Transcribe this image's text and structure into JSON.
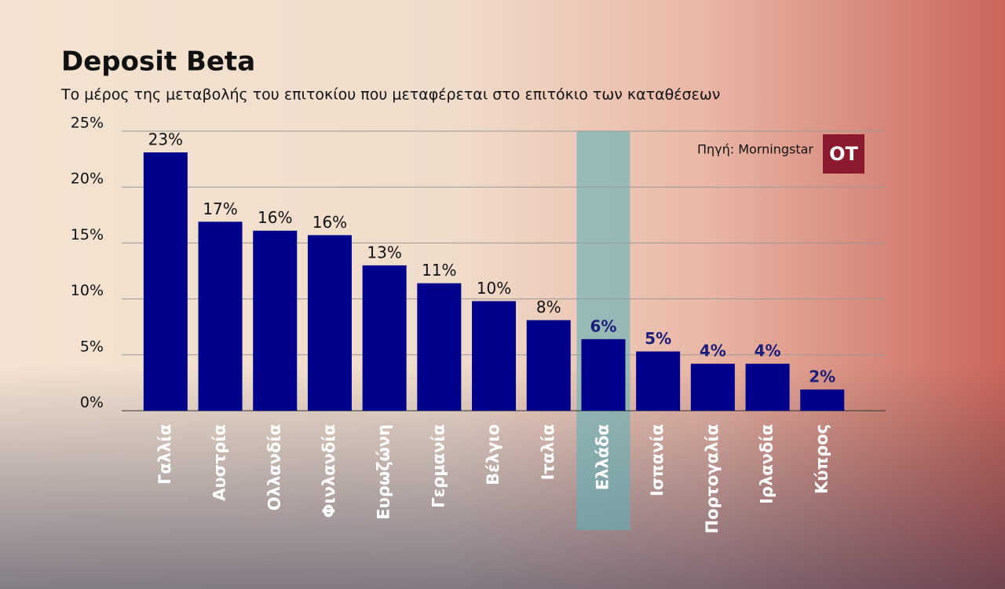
{
  "chart_data": {
    "type": "bar",
    "title": "Deposit Beta",
    "subtitle": "Το μέρος της μεταβολής του επιτοκίου που μεταφέρεται στο επιτόκιο των καταθέσεων",
    "source": "Πηγή: Morningstar",
    "logo": "OT",
    "categories": [
      "Γαλλία",
      "Αυστρία",
      "Ολλανδία",
      "Φινλανδία",
      "Ευρωζώνη",
      "Γερμανία",
      "Βέλγιο",
      "Ιταλία",
      "Ελλάδα",
      "Ισπανία",
      "Πορτογαλία",
      "Ιρλανδία",
      "Κύπρος"
    ],
    "values": [
      23.1,
      16.9,
      16.1,
      15.7,
      13.0,
      11.4,
      9.8,
      8.1,
      6.4,
      5.3,
      4.2,
      4.2,
      1.9
    ],
    "value_labels": [
      "23%",
      "17%",
      "16%",
      "16%",
      "13%",
      "11%",
      "10%",
      "8%",
      "6%",
      "5%",
      "4%",
      "4%",
      "2%"
    ],
    "value_label_colors": [
      "#111",
      "#111",
      "#111",
      "#111",
      "#111",
      "#111",
      "#111",
      "#111",
      "#1c1c7a",
      "#1c1c7a",
      "#1c1c7a",
      "#1c1c7a",
      "#1c1c7a"
    ],
    "color": "#00008b",
    "highlight": "Ελλάδα",
    "highlight_color": "#5fb0b8",
    "ylim": [
      0,
      25
    ],
    "yticks": [
      {
        "value": 0,
        "label": "0%"
      },
      {
        "value": 5,
        "label": "5%"
      },
      {
        "value": 10,
        "label": "10%"
      },
      {
        "value": 15,
        "label": "15%"
      },
      {
        "value": 20,
        "label": "20%"
      },
      {
        "value": 25,
        "label": "25%"
      }
    ],
    "grid": true
  }
}
